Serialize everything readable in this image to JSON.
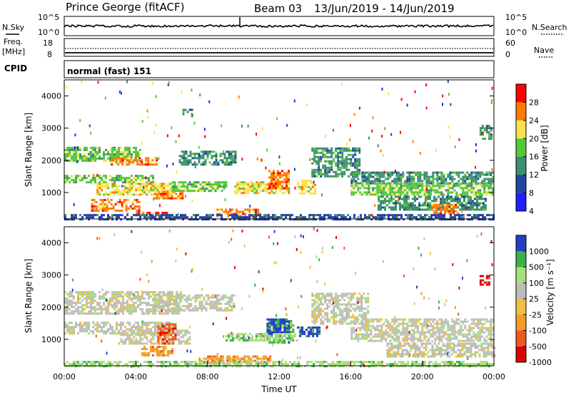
{
  "header": {
    "station": "Prince George (fitACF)",
    "beam": "Beam 03",
    "date_range": "13/Jun/2019 - 14/Jun/2019"
  },
  "top_panels": {
    "nsky_label": "N.Sky",
    "nsearch_label": "N.Search",
    "freq_label_line1": "Freq.",
    "freq_label_line2": "[MHz]",
    "nave_label": "Nave",
    "cpid_label": "CPID",
    "cpid_value": "normal (fast) 151",
    "noise_ticks_left": [
      "10^5",
      "10^0"
    ],
    "noise_ticks_right": [
      "10^5",
      "10^0"
    ],
    "freq_ticks": [
      "18",
      "8"
    ],
    "nave_ticks": [
      "60",
      "0"
    ]
  },
  "chart_data": [
    {
      "type": "heatmap",
      "panel": "power",
      "ylabel": "Slant Range [km]",
      "xlabel": "",
      "y_ticks": [
        "1000",
        "2000",
        "3000",
        "4000"
      ],
      "ylim": [
        180,
        4500
      ],
      "xlim": [
        0,
        24
      ],
      "colorbar_label": "Power [dB]",
      "colorbar_ticks": [
        "28",
        "24",
        "20",
        "16",
        "12",
        "8",
        "4"
      ],
      "colorbar_colors": [
        "#ff0000",
        "#ff7a00",
        "#f7e24a",
        "#55c838",
        "#3d8f6e",
        "#2346a0",
        "#2020ff"
      ],
      "echo_regions": [
        {
          "t0": 0.0,
          "t1": 4.3,
          "r0": 2000,
          "r1": 2420,
          "level": 3
        },
        {
          "t0": 2.6,
          "t1": 5.2,
          "r0": 1850,
          "r1": 2100,
          "level": 1
        },
        {
          "t0": 0.0,
          "t1": 5.0,
          "r0": 1300,
          "r1": 1550,
          "level": 3
        },
        {
          "t0": 1.8,
          "t1": 6.2,
          "r0": 950,
          "r1": 1300,
          "level": 2
        },
        {
          "t0": 5.0,
          "t1": 6.6,
          "r0": 800,
          "r1": 1050,
          "level": 1
        },
        {
          "t0": 1.5,
          "t1": 4.2,
          "r0": 450,
          "r1": 800,
          "level": 1
        },
        {
          "t0": 4.0,
          "t1": 5.7,
          "r0": 280,
          "r1": 400,
          "level": 0
        },
        {
          "t0": 6.0,
          "t1": 9.0,
          "r0": 1050,
          "r1": 1350,
          "level": 3
        },
        {
          "t0": 6.4,
          "t1": 9.6,
          "r0": 1900,
          "r1": 2300,
          "level": 4
        },
        {
          "t0": 6.6,
          "t1": 7.1,
          "r0": 3400,
          "r1": 3600,
          "level": 4
        },
        {
          "t0": 8.5,
          "t1": 11.0,
          "r0": 280,
          "r1": 500,
          "level": 1
        },
        {
          "t0": 9.5,
          "t1": 12.5,
          "r0": 1000,
          "r1": 1350,
          "level": 2
        },
        {
          "t0": 11.4,
          "t1": 12.5,
          "r0": 1150,
          "r1": 1700,
          "level": 1
        },
        {
          "t0": 13.0,
          "t1": 14.0,
          "r0": 1000,
          "r1": 1400,
          "level": 2
        },
        {
          "t0": 13.8,
          "t1": 16.5,
          "r0": 1500,
          "r1": 2400,
          "level": 4
        },
        {
          "t0": 16.0,
          "t1": 24.0,
          "r0": 1300,
          "r1": 1650,
          "level": 4
        },
        {
          "t0": 16.0,
          "t1": 24.0,
          "r0": 950,
          "r1": 1300,
          "level": 3
        },
        {
          "t0": 17.5,
          "t1": 23.5,
          "r0": 500,
          "r1": 900,
          "level": 4
        },
        {
          "t0": 20.5,
          "t1": 22.0,
          "r0": 350,
          "r1": 650,
          "level": 1
        },
        {
          "t0": 23.2,
          "t1": 23.8,
          "r0": 2700,
          "r1": 3100,
          "level": 4
        },
        {
          "t0": 0.0,
          "t1": 24.0,
          "r0": 180,
          "r1": 330,
          "level": 5
        }
      ]
    },
    {
      "type": "heatmap",
      "panel": "velocity",
      "ylabel": "Slant Range [km]",
      "xlabel": "Time UT",
      "x_ticks": [
        "00:00",
        "04:00",
        "08:00",
        "12:00",
        "16:00",
        "20:00",
        "00:00"
      ],
      "y_ticks": [
        "1000",
        "2000",
        "3000",
        "4000"
      ],
      "ylim": [
        180,
        4500
      ],
      "xlim": [
        0,
        24
      ],
      "colorbar_label": "Velocity [m s⁻¹]",
      "colorbar_ticks": [
        "1000",
        "500",
        "100",
        "25",
        "-25",
        "-100",
        "-500",
        "-1000"
      ],
      "colorbar_colors": [
        "#2040c0",
        "#3cb04a",
        "#a8e078",
        "#bdbdbd",
        "#f0c040",
        "#f39a28",
        "#ee5a1e",
        "#e00000"
      ],
      "echo_regions": [
        {
          "t0": 0.0,
          "t1": 6.5,
          "r0": 1800,
          "r1": 2500,
          "level": 3
        },
        {
          "t0": 0.0,
          "t1": 6.0,
          "r0": 1200,
          "r1": 1550,
          "level": 3
        },
        {
          "t0": 3.0,
          "t1": 7.0,
          "r0": 900,
          "r1": 1300,
          "level": 3
        },
        {
          "t0": 5.0,
          "t1": 9.5,
          "r0": 1900,
          "r1": 2400,
          "level": 3
        },
        {
          "t0": 4.3,
          "t1": 6.0,
          "r0": 500,
          "r1": 800,
          "level": 5
        },
        {
          "t0": 5.2,
          "t1": 6.2,
          "r0": 900,
          "r1": 1500,
          "level": 6
        },
        {
          "t0": 7.5,
          "t1": 11.5,
          "r0": 280,
          "r1": 500,
          "level": 5
        },
        {
          "t0": 11.3,
          "t1": 12.8,
          "r0": 900,
          "r1": 1600,
          "level": 1
        },
        {
          "t0": 11.3,
          "t1": 12.5,
          "r0": 1250,
          "r1": 1650,
          "level": 0
        },
        {
          "t0": 9.0,
          "t1": 13.0,
          "r0": 950,
          "r1": 1200,
          "level": 2
        },
        {
          "t0": 13.0,
          "t1": 14.3,
          "r0": 1100,
          "r1": 1400,
          "level": 0
        },
        {
          "t0": 13.8,
          "t1": 17.0,
          "r0": 1500,
          "r1": 2450,
          "level": 3
        },
        {
          "t0": 16.0,
          "t1": 24.0,
          "r0": 950,
          "r1": 1650,
          "level": 3
        },
        {
          "t0": 18.0,
          "t1": 24.0,
          "r0": 500,
          "r1": 900,
          "level": 3
        },
        {
          "t0": 23.2,
          "t1": 23.7,
          "r0": 2700,
          "r1": 3000,
          "level": 7
        },
        {
          "t0": 0.0,
          "t1": 24.0,
          "r0": 180,
          "r1": 330,
          "level": 2
        }
      ]
    }
  ]
}
